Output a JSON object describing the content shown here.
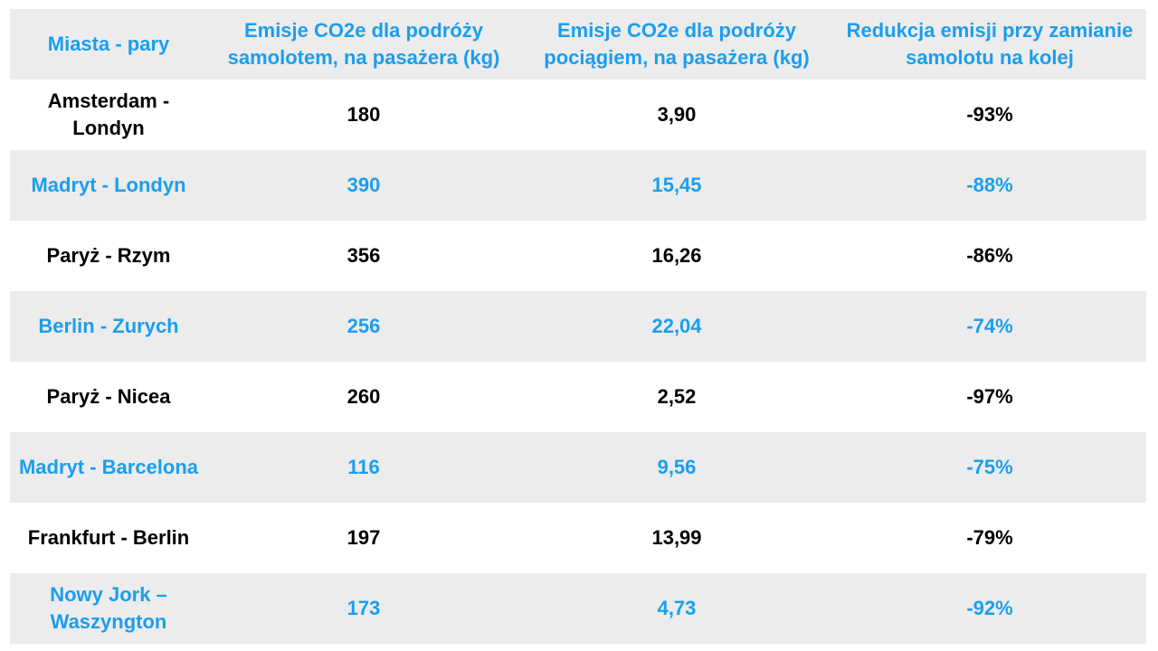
{
  "chart_data": {
    "type": "table",
    "columns": [
      "Miasta - pary",
      "Emisje CO2e dla podróży samolotem, na pasażera (kg)",
      "Emisje CO2e dla podróży pociągiem, na pasażera (kg)",
      "Redukcja emisji przy zamianie samolotu na kolej"
    ],
    "rows": [
      [
        "Amsterdam - Londyn",
        "180",
        "3,90",
        "-93%"
      ],
      [
        "Madryt - Londyn",
        "390",
        "15,45",
        "-88%"
      ],
      [
        "Paryż - Rzym",
        "356",
        "16,26",
        "-86%"
      ],
      [
        "Berlin - Zurych",
        "256",
        "22,04",
        "-74%"
      ],
      [
        "Paryż - Nicea",
        "260",
        "2,52",
        "-97%"
      ],
      [
        "Madryt - Barcelona",
        "116",
        "9,56",
        "-75%"
      ],
      [
        "Frankfurt - Berlin",
        "197",
        "13,99",
        "-79%"
      ],
      [
        "Nowy Jork – Waszyngton",
        "173",
        "4,73",
        "-92%"
      ]
    ],
    "colors": {
      "accent_text": "#1a9ef0",
      "stripe_background": "#ececec",
      "plain_text": "#000000"
    }
  }
}
